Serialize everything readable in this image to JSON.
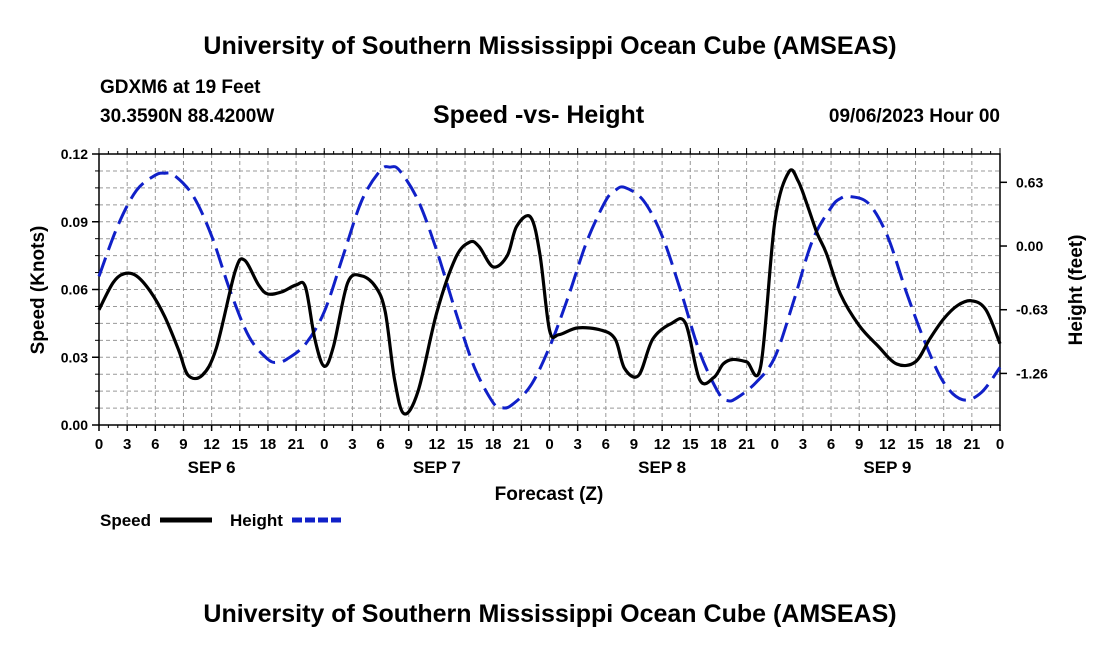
{
  "titles": {
    "top": "University of Southern Mississippi Ocean Cube (AMSEAS)",
    "bottom": "University of Southern Mississippi Ocean Cube (AMSEAS)"
  },
  "station": {
    "name": "GDXM6 at 19 Feet",
    "coords": "30.3590N  88.4200W"
  },
  "chart_data": {
    "type": "line",
    "title": "Speed -vs- Height",
    "date": "09/06/2023 Hour 00",
    "xlabel": "Forecast (Z)",
    "ylabel_left": "Speed (Knots)",
    "ylabel_right": "Height (feet)",
    "x_range": [
      0,
      96
    ],
    "y_left_range": [
      0,
      0.12
    ],
    "y_left_ticks": [
      "0.00",
      "0.03",
      "0.06",
      "0.09",
      "0.12"
    ],
    "y_right_range": [
      -1.77,
      0.91
    ],
    "y_right_ticks": [
      {
        "value": 0.63,
        "label": "0.63"
      },
      {
        "value": 0.0,
        "label": "0.00"
      },
      {
        "value": -0.63,
        "label": "-0.63"
      },
      {
        "value": -1.26,
        "label": "-1.26"
      }
    ],
    "x_tick_labels": [
      "0",
      "3",
      "6",
      "9",
      "12",
      "15",
      "18",
      "21",
      "0",
      "3",
      "6",
      "9",
      "12",
      "15",
      "18",
      "21",
      "0",
      "3",
      "6",
      "9",
      "12",
      "15",
      "18",
      "21",
      "0",
      "3",
      "6",
      "9",
      "12",
      "15",
      "18",
      "21",
      "0"
    ],
    "day_labels": [
      "SEP 6",
      "SEP 7",
      "SEP 8",
      "SEP 9"
    ],
    "grid": true,
    "legend_position": "bottom-left",
    "series": [
      {
        "name": "Speed",
        "axis": "left",
        "color": "#000000",
        "style": "solid",
        "x": [
          0,
          1.5,
          2.7,
          4,
          5.5,
          7,
          8.5,
          9.5,
          11,
          12.5,
          14.5,
          15.5,
          17,
          18,
          19.5,
          21,
          22,
          23,
          24,
          25,
          26.5,
          28,
          29.5,
          30.5,
          31.5,
          32.5,
          34,
          36,
          38,
          39.5,
          40.5,
          42,
          43.5,
          44.5,
          46,
          47,
          48,
          49,
          51,
          53.5,
          55,
          56,
          57.5,
          59,
          61,
          62.5,
          64,
          65.5,
          66.5,
          67.5,
          69,
          70.5,
          72,
          73.5,
          74.5,
          75.5,
          76.5,
          77.5,
          79,
          81,
          83,
          85,
          87,
          88.5,
          90,
          91.5,
          93,
          94.5,
          96
        ],
        "values": [
          0.051,
          0.063,
          0.067,
          0.066,
          0.059,
          0.048,
          0.033,
          0.022,
          0.022,
          0.034,
          0.068,
          0.073,
          0.062,
          0.058,
          0.059,
          0.062,
          0.061,
          0.038,
          0.026,
          0.035,
          0.063,
          0.066,
          0.061,
          0.05,
          0.02,
          0.005,
          0.015,
          0.05,
          0.074,
          0.081,
          0.079,
          0.07,
          0.075,
          0.088,
          0.092,
          0.075,
          0.042,
          0.04,
          0.043,
          0.042,
          0.038,
          0.025,
          0.022,
          0.038,
          0.045,
          0.045,
          0.02,
          0.021,
          0.027,
          0.029,
          0.028,
          0.026,
          0.09,
          0.112,
          0.108,
          0.097,
          0.085,
          0.076,
          0.058,
          0.044,
          0.035,
          0.027,
          0.028,
          0.038,
          0.047,
          0.053,
          0.055,
          0.051,
          0.036
        ]
      },
      {
        "name": "Height",
        "axis": "right",
        "color": "#1020c8",
        "style": "dashed",
        "x": [
          0,
          2,
          4,
          6,
          7,
          8,
          10,
          12,
          14,
          16,
          18,
          19,
          20,
          22,
          24,
          26,
          28,
          30,
          31,
          32,
          34,
          36,
          38,
          40,
          42,
          43,
          44,
          46,
          48,
          50,
          52,
          54,
          55,
          56,
          58,
          60,
          62,
          64,
          66,
          67,
          68,
          70,
          72,
          74,
          76,
          78,
          79,
          80,
          82,
          84,
          86,
          88,
          90,
          92,
          94,
          96
        ],
        "values": [
          -0.3,
          0.2,
          0.55,
          0.7,
          0.72,
          0.7,
          0.5,
          0.1,
          -0.45,
          -0.9,
          -1.12,
          -1.15,
          -1.12,
          -0.97,
          -0.65,
          -0.1,
          0.45,
          0.75,
          0.78,
          0.75,
          0.45,
          -0.05,
          -0.65,
          -1.2,
          -1.55,
          -1.6,
          -1.57,
          -1.38,
          -1.0,
          -0.5,
          0.05,
          0.45,
          0.55,
          0.58,
          0.45,
          0.1,
          -0.45,
          -1.05,
          -1.45,
          -1.53,
          -1.5,
          -1.35,
          -1.1,
          -0.55,
          0.05,
          0.38,
          0.47,
          0.49,
          0.42,
          0.1,
          -0.45,
          -0.95,
          -1.35,
          -1.52,
          -1.45,
          -1.2
        ]
      }
    ]
  }
}
